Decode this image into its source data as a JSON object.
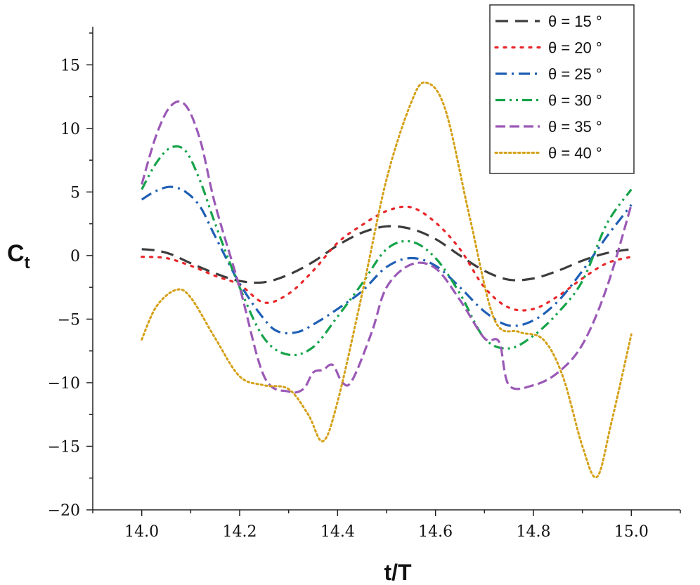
{
  "chart_data": {
    "type": "line",
    "title": "",
    "xlabel": "t/T",
    "ylabel_main": "C",
    "ylabel_sub": "t",
    "xlim": [
      13.9,
      15.1
    ],
    "ylim": [
      -20,
      18
    ],
    "xticks": [
      14.0,
      14.2,
      14.4,
      14.6,
      14.8,
      15.0
    ],
    "xtick_labels": [
      "14.0",
      "14.2",
      "14.4",
      "14.6",
      "14.8",
      "15.0"
    ],
    "yticks": [
      -20,
      -15,
      -10,
      -5,
      0,
      5,
      10,
      15
    ],
    "ytick_labels": [
      "−20",
      "−15",
      "−10",
      "−5",
      "0",
      "5",
      "10",
      "15"
    ],
    "grid": false,
    "legend_position": "top-right",
    "series": [
      {
        "name": "θ = 15 °",
        "color": "#3c3c3c",
        "dash": "dash",
        "x": [
          14.0,
          14.03,
          14.06,
          14.1,
          14.15,
          14.2,
          14.25,
          14.3,
          14.35,
          14.4,
          14.45,
          14.5,
          14.55,
          14.6,
          14.65,
          14.7,
          14.75,
          14.8,
          14.85,
          14.9,
          14.95,
          15.0
        ],
        "y": [
          0.5,
          0.4,
          0.1,
          -0.6,
          -1.4,
          -2.0,
          -2.1,
          -1.5,
          -0.5,
          0.8,
          1.8,
          2.3,
          2.1,
          1.3,
          0.0,
          -1.2,
          -1.9,
          -1.8,
          -1.2,
          -0.4,
          0.2,
          0.5
        ]
      },
      {
        "name": "θ = 20 °",
        "color": "#e8272a",
        "dash": "dot",
        "x": [
          14.0,
          14.05,
          14.1,
          14.15,
          14.2,
          14.25,
          14.3,
          14.35,
          14.4,
          14.45,
          14.5,
          14.55,
          14.6,
          14.65,
          14.7,
          14.75,
          14.8,
          14.85,
          14.9,
          14.95,
          15.0
        ],
        "y": [
          -0.1,
          -0.2,
          -0.8,
          -1.6,
          -2.3,
          -3.7,
          -3.0,
          -1.2,
          1.0,
          2.4,
          3.5,
          3.8,
          2.6,
          0.5,
          -2.5,
          -4.1,
          -4.2,
          -3.2,
          -1.8,
          -0.6,
          -0.1
        ]
      },
      {
        "name": "θ = 25 °",
        "color": "#1f5fb5",
        "dash": "dashdot",
        "x": [
          14.0,
          14.03,
          14.06,
          14.09,
          14.12,
          14.15,
          14.2,
          14.25,
          14.28,
          14.32,
          14.36,
          14.4,
          14.45,
          14.5,
          14.55,
          14.6,
          14.65,
          14.7,
          14.75,
          14.8,
          14.85,
          14.9,
          14.95,
          14.98,
          15.0
        ],
        "y": [
          4.4,
          5.1,
          5.4,
          5.0,
          3.8,
          1.5,
          -2.2,
          -5.0,
          -6.0,
          -6.0,
          -5.2,
          -4.2,
          -2.8,
          -0.9,
          -0.2,
          -0.8,
          -2.5,
          -4.4,
          -5.5,
          -5.1,
          -3.6,
          -1.2,
          1.5,
          3.0,
          4.0
        ]
      },
      {
        "name": "θ = 30 °",
        "color": "#16a34a",
        "dash": "dashdotdot",
        "x": [
          14.0,
          14.03,
          14.06,
          14.09,
          14.12,
          14.15,
          14.2,
          14.25,
          14.3,
          14.35,
          14.4,
          14.45,
          14.5,
          14.55,
          14.6,
          14.65,
          14.7,
          14.75,
          14.8,
          14.85,
          14.9,
          14.95,
          15.0
        ],
        "y": [
          5.2,
          7.3,
          8.5,
          8.2,
          5.8,
          2.5,
          -2.5,
          -6.5,
          -7.8,
          -7.2,
          -4.8,
          -2.2,
          0.5,
          1.1,
          -0.2,
          -3.0,
          -6.5,
          -7.3,
          -6.3,
          -4.5,
          -2.0,
          2.5,
          5.2
        ]
      },
      {
        "name": "θ = 35 °",
        "color": "#9b59b6",
        "dash": "longdash",
        "x": [
          14.0,
          14.03,
          14.06,
          14.09,
          14.12,
          14.15,
          14.2,
          14.25,
          14.3,
          14.33,
          14.35,
          14.37,
          14.39,
          14.41,
          14.43,
          14.47,
          14.5,
          14.55,
          14.6,
          14.65,
          14.7,
          14.73,
          14.75,
          14.8,
          14.85,
          14.9,
          14.95,
          15.0
        ],
        "y": [
          5.6,
          9.5,
          11.8,
          11.8,
          9.0,
          4.0,
          -2.5,
          -9.5,
          -10.7,
          -10.5,
          -9.2,
          -9.0,
          -8.6,
          -10.0,
          -9.8,
          -6.0,
          -2.5,
          -0.7,
          -1.0,
          -3.5,
          -6.5,
          -6.8,
          -10.2,
          -10.2,
          -9.2,
          -7.0,
          -2.5,
          4.0
        ]
      },
      {
        "name": "θ = 40 °",
        "color": "#d4a017",
        "dash": "finedot",
        "x": [
          14.0,
          14.03,
          14.07,
          14.1,
          14.15,
          14.2,
          14.25,
          14.3,
          14.34,
          14.37,
          14.4,
          14.45,
          14.5,
          14.55,
          14.58,
          14.62,
          14.67,
          14.72,
          14.77,
          14.82,
          14.86,
          14.9,
          14.93,
          14.96,
          15.0
        ],
        "y": [
          -6.6,
          -4.0,
          -2.7,
          -3.3,
          -6.5,
          -9.5,
          -10.2,
          -10.5,
          -12.5,
          -14.6,
          -11.5,
          -3.0,
          6.0,
          12.0,
          13.6,
          11.5,
          3.0,
          -5.0,
          -6.0,
          -6.6,
          -9.5,
          -15.0,
          -17.4,
          -13.0,
          -6.2
        ]
      }
    ]
  }
}
